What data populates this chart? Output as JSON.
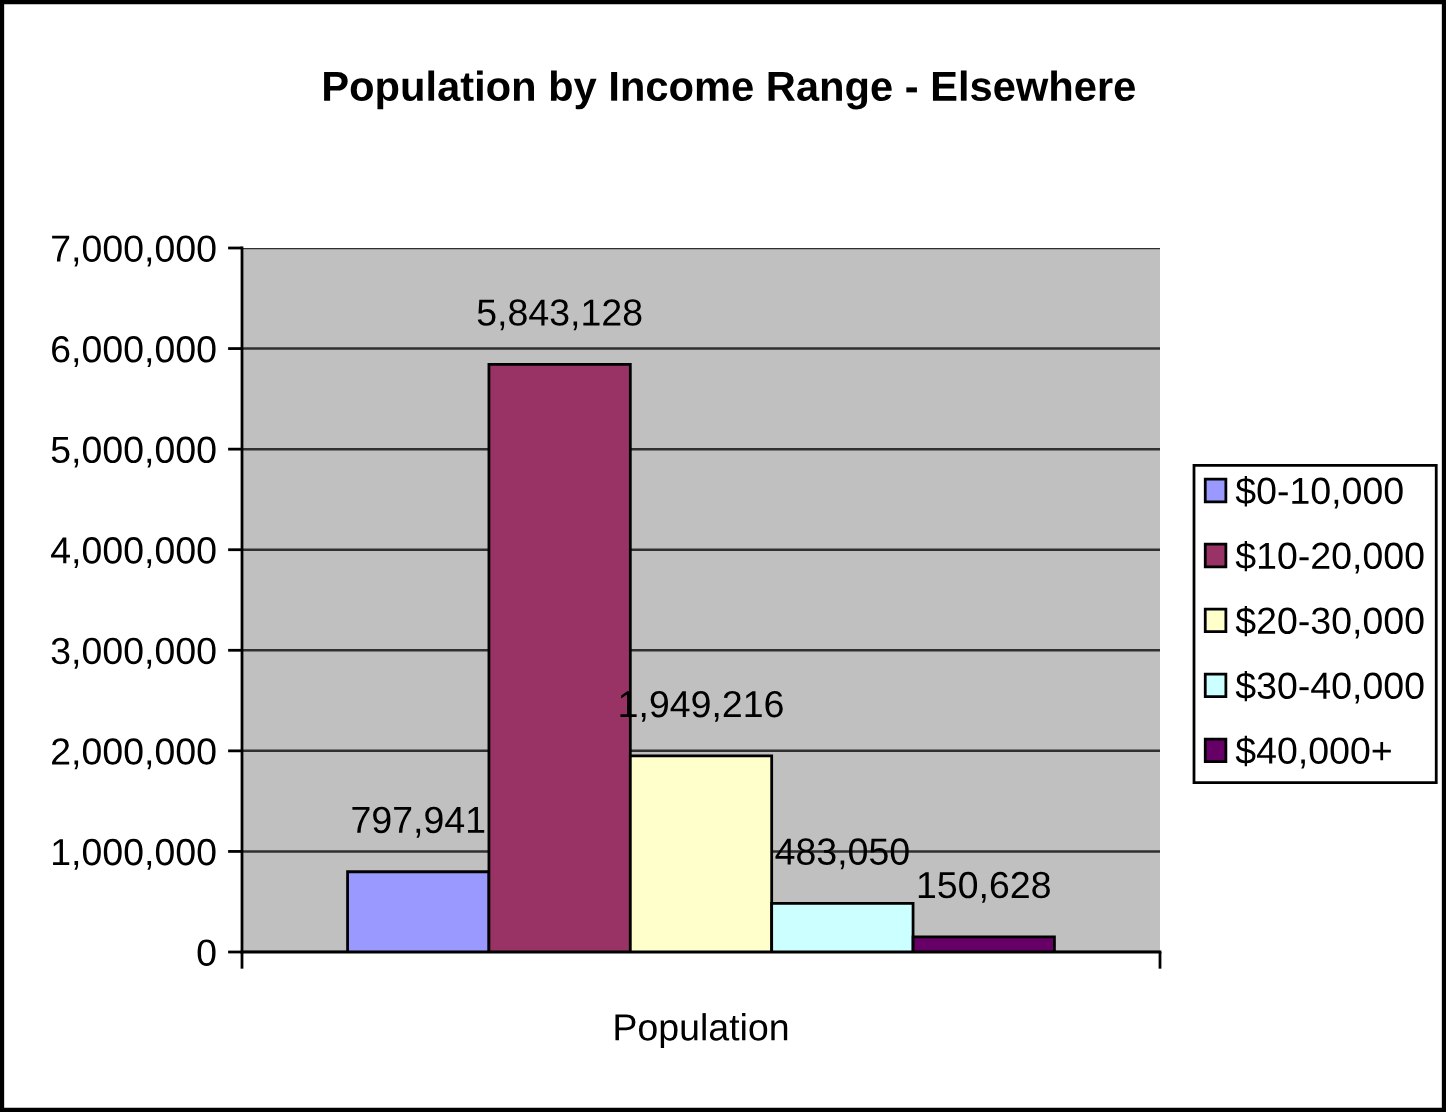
{
  "chart_data": {
    "type": "bar",
    "title": "Population by Income Range - Elsewhere",
    "categories": [
      "Population"
    ],
    "series": [
      {
        "name": "$0-10,000",
        "color": "#9999ff",
        "values": [
          797941
        ],
        "value_labels": [
          "797,941"
        ]
      },
      {
        "name": "$10-20,000",
        "color": "#993366",
        "values": [
          5843128
        ],
        "value_labels": [
          "5,843,128"
        ]
      },
      {
        "name": "$20-30,000",
        "color": "#ffffcc",
        "values": [
          1949216
        ],
        "value_labels": [
          "1,949,216"
        ]
      },
      {
        "name": "$30-40,000",
        "color": "#ccffff",
        "values": [
          483050
        ],
        "value_labels": [
          "483,050"
        ]
      },
      {
        "name": "$40,000+",
        "color": "#660066",
        "values": [
          150628
        ],
        "value_labels": [
          "150,628"
        ]
      }
    ],
    "ylim": [
      0,
      7000000
    ],
    "yticks": [
      0,
      {
        "value": 1000000,
        "label": "1,000,000"
      },
      {
        "value": 2000000,
        "label": "2,000,000"
      },
      {
        "value": 3000000,
        "label": "3,000,000"
      },
      {
        "value": 4000000,
        "label": "4,000,000"
      },
      {
        "value": 5000000,
        "label": "5,000,000"
      },
      {
        "value": 6000000,
        "label": "6,000,000"
      },
      {
        "value": 7000000,
        "label": "7,000,000"
      }
    ],
    "grid": "y",
    "legend": "right"
  }
}
